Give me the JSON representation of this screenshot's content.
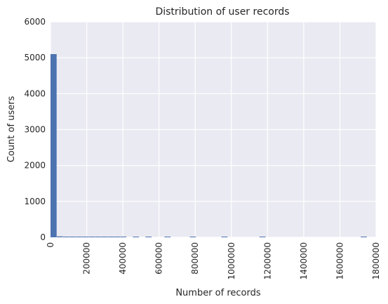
{
  "chart_data": {
    "type": "bar",
    "title": "Distribution of user records",
    "xlabel": "Number of records",
    "ylabel": "Count of users",
    "xlim": [
      0,
      1800000
    ],
    "ylim": [
      0,
      6000
    ],
    "x_ticks": [
      0,
      200000,
      400000,
      600000,
      800000,
      1000000,
      1200000,
      1400000,
      1600000,
      1800000
    ],
    "x_tick_labels": [
      "0",
      "200000",
      "400000",
      "600000",
      "800000",
      "1000000",
      "1200000",
      "1400000",
      "1600000",
      "1800000"
    ],
    "y_ticks": [
      0,
      1000,
      2000,
      3000,
      4000,
      5000,
      6000
    ],
    "y_tick_labels": [
      "0",
      "1000",
      "2000",
      "3000",
      "4000",
      "5000",
      "6000"
    ],
    "bin_width": 35000,
    "bins": [
      {
        "x0": 0,
        "x1": 35000,
        "count": 5100
      },
      {
        "x0": 35000,
        "x1": 70000,
        "count": 25
      },
      {
        "x0": 70000,
        "x1": 105000,
        "count": 6
      },
      {
        "x0": 105000,
        "x1": 140000,
        "count": 4
      },
      {
        "x0": 140000,
        "x1": 175000,
        "count": 3
      },
      {
        "x0": 175000,
        "x1": 210000,
        "count": 2
      },
      {
        "x0": 210000,
        "x1": 245000,
        "count": 2
      },
      {
        "x0": 245000,
        "x1": 280000,
        "count": 1
      },
      {
        "x0": 280000,
        "x1": 315000,
        "count": 1
      },
      {
        "x0": 315000,
        "x1": 350000,
        "count": 1
      },
      {
        "x0": 350000,
        "x1": 385000,
        "count": 1
      },
      {
        "x0": 385000,
        "x1": 420000,
        "count": 1
      },
      {
        "x0": 455000,
        "x1": 490000,
        "count": 1
      },
      {
        "x0": 525000,
        "x1": 560000,
        "count": 1
      },
      {
        "x0": 630000,
        "x1": 665000,
        "count": 1
      },
      {
        "x0": 770000,
        "x1": 805000,
        "count": 1
      },
      {
        "x0": 945000,
        "x1": 980000,
        "count": 1
      },
      {
        "x0": 1155000,
        "x1": 1190000,
        "count": 1
      },
      {
        "x0": 1715000,
        "x1": 1750000,
        "count": 1
      }
    ],
    "grid": true,
    "colors": {
      "bar": "#4c72b0",
      "background": "#eaeaf2",
      "grid": "#ffffff"
    }
  }
}
